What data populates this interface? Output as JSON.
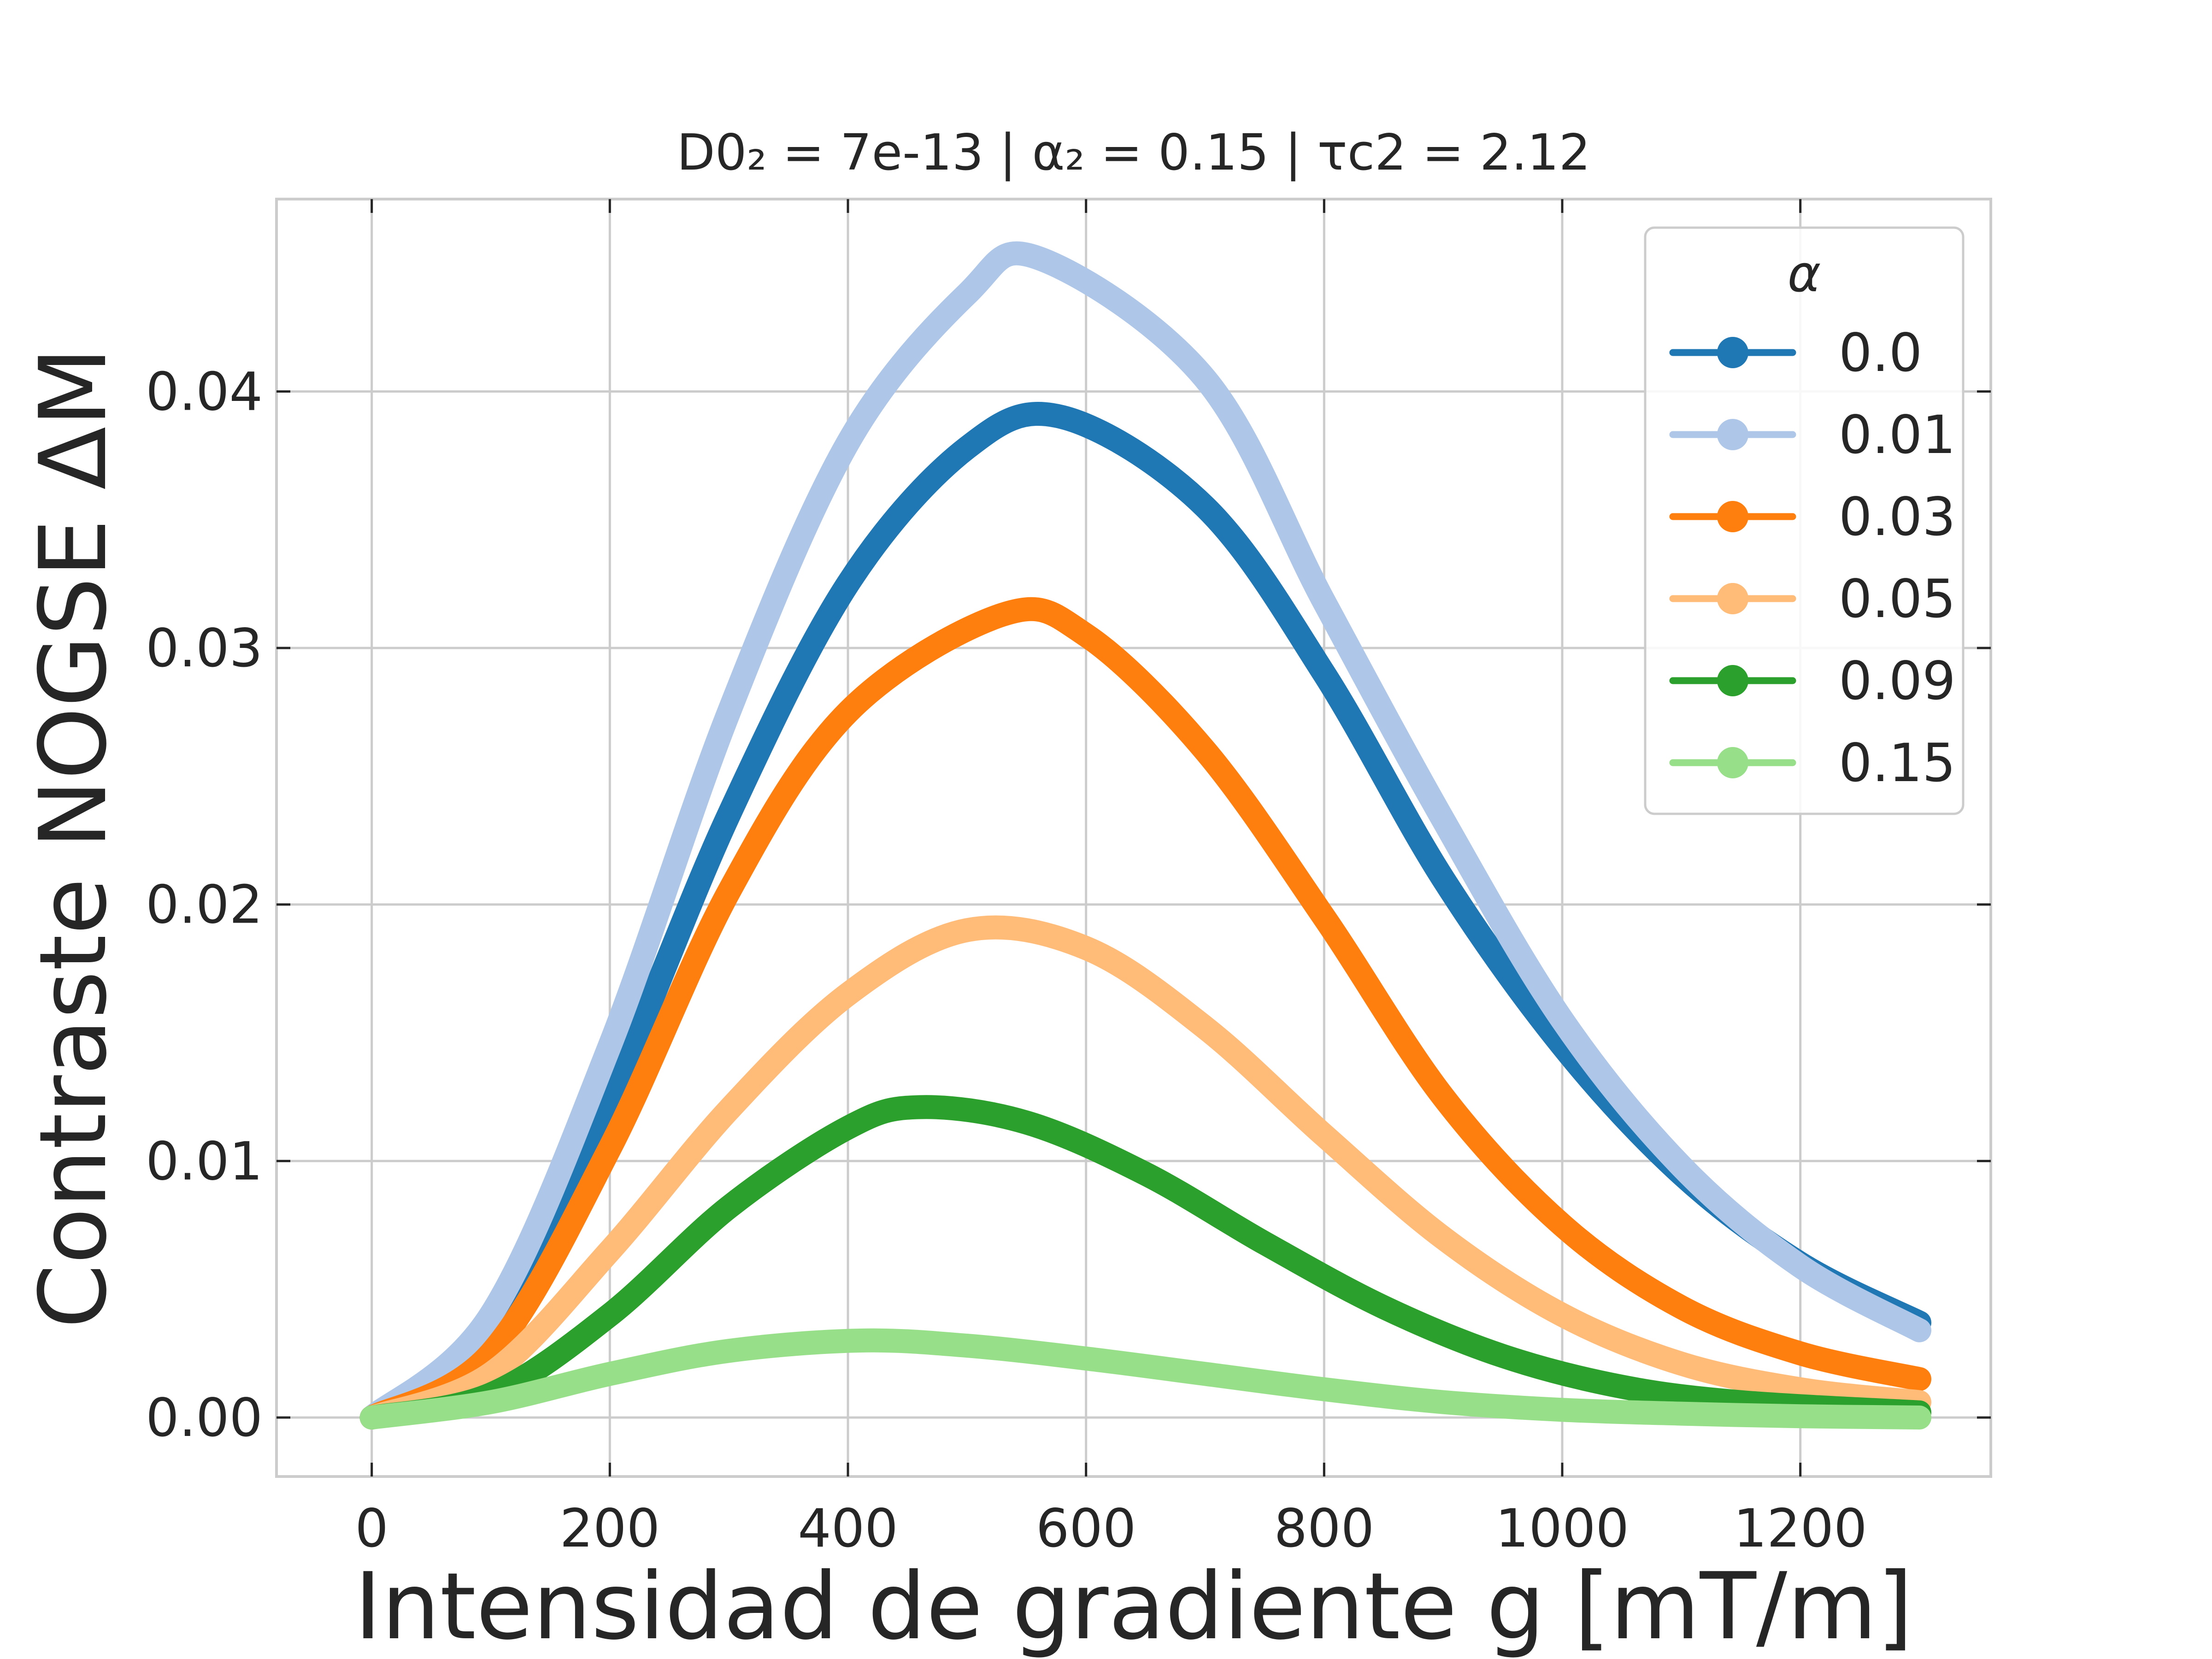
{
  "chart_data": {
    "type": "line",
    "title": "D0₂ = 7e-13 | α₂ = 0.15 | τc2 = 2.12",
    "xlabel": "Intensidad de gradiente g [mT/m]",
    "ylabel": "Contraste NOGSE ΔM",
    "xlim": [
      -80,
      1360
    ],
    "ylim": [
      -0.0023,
      0.0475
    ],
    "xticks": [
      0,
      200,
      400,
      600,
      800,
      1000,
      1200
    ],
    "xtick_labels": [
      "0",
      "200",
      "400",
      "600",
      "800",
      "1000",
      "1200"
    ],
    "yticks": [
      0.0,
      0.01,
      0.02,
      0.03,
      0.04
    ],
    "ytick_labels": [
      "0.00",
      "0.01",
      "0.02",
      "0.03",
      "0.04"
    ],
    "grid": true,
    "legend": {
      "title": "α",
      "placement": "top-right"
    },
    "series": [
      {
        "name": "0.0",
        "color": "#1f77b4",
        "x": [
          0,
          100,
          200,
          300,
          400,
          500,
          580,
          700,
          800,
          900,
          1000,
          1100,
          1200,
          1300
        ],
        "y": [
          0.0,
          0.0035,
          0.0125,
          0.0235,
          0.0325,
          0.0378,
          0.039,
          0.0355,
          0.029,
          0.021,
          0.0145,
          0.0095,
          0.006,
          0.0037
        ]
      },
      {
        "name": "0.01",
        "color": "#aec7e8",
        "x": [
          0,
          100,
          200,
          300,
          400,
          500,
          560,
          700,
          800,
          900,
          1000,
          1100,
          1200,
          1300
        ],
        "y": [
          0.0,
          0.004,
          0.0145,
          0.0275,
          0.038,
          0.0438,
          0.0452,
          0.0405,
          0.0318,
          0.0233,
          0.0155,
          0.0098,
          0.0059,
          0.0034
        ]
      },
      {
        "name": "0.03",
        "color": "#ff7f0e",
        "x": [
          0,
          100,
          200,
          300,
          400,
          530,
          600,
          700,
          800,
          900,
          1000,
          1100,
          1200,
          1300
        ],
        "y": [
          0.0,
          0.0025,
          0.0105,
          0.0205,
          0.0275,
          0.0313,
          0.0305,
          0.026,
          0.0195,
          0.0125,
          0.0075,
          0.0043,
          0.0025,
          0.0015
        ]
      },
      {
        "name": "0.05",
        "color": "#ffbb78",
        "x": [
          0,
          100,
          200,
          300,
          400,
          500,
          600,
          700,
          800,
          900,
          1000,
          1100,
          1200,
          1300
        ],
        "y": [
          0.0,
          0.0017,
          0.0065,
          0.012,
          0.0165,
          0.019,
          0.0183,
          0.0152,
          0.011,
          0.007,
          0.004,
          0.0021,
          0.0011,
          0.0006
        ]
      },
      {
        "name": "0.09",
        "color": "#2ca02c",
        "x": [
          0,
          100,
          200,
          300,
          400,
          460,
          550,
          650,
          750,
          850,
          950,
          1050,
          1150,
          1300
        ],
        "y": [
          0.0,
          0.0009,
          0.004,
          0.0082,
          0.0113,
          0.0121,
          0.0115,
          0.0095,
          0.0068,
          0.0043,
          0.0024,
          0.0012,
          0.0006,
          0.0002
        ]
      },
      {
        "name": "0.15",
        "color": "#98df8a",
        "x": [
          0,
          100,
          200,
          300,
          410,
          500,
          600,
          700,
          800,
          900,
          1000,
          1100,
          1200,
          1300
        ],
        "y": [
          0.0,
          0.0006,
          0.0017,
          0.0026,
          0.003,
          0.0028,
          0.0023,
          0.0017,
          0.0011,
          0.0006,
          0.0003,
          0.00015,
          5e-05,
          0.0
        ]
      }
    ]
  }
}
